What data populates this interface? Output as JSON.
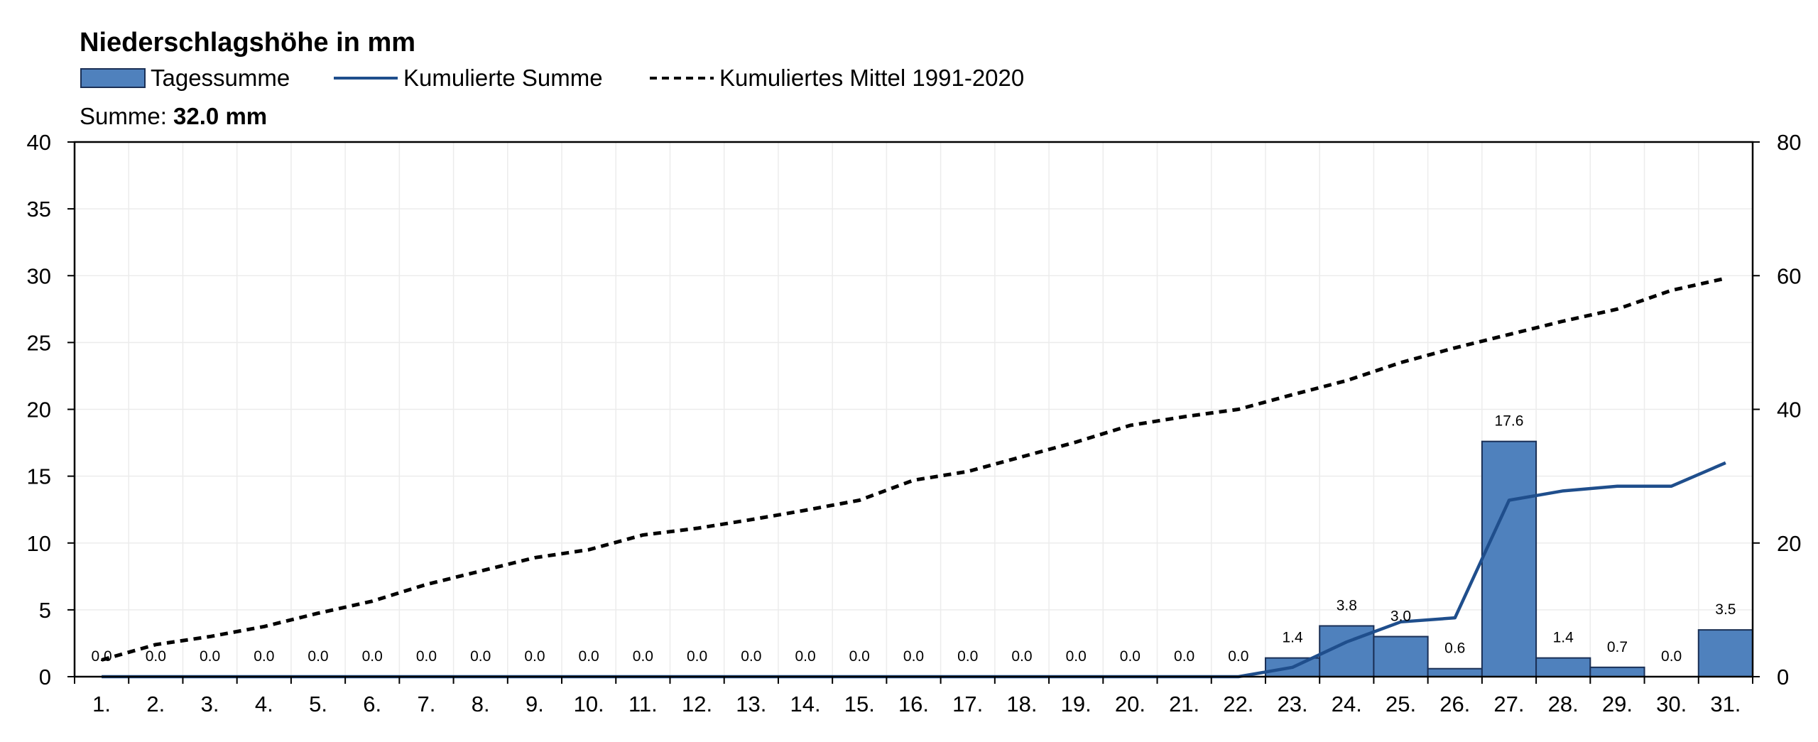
{
  "chart_data": {
    "type": "bar",
    "title": "Niederschlagshöhe in mm",
    "summary_label": "Summe: ",
    "summary_value": "32.0 mm",
    "categories": [
      "1.",
      "2.",
      "3.",
      "4.",
      "5.",
      "6.",
      "7.",
      "8.",
      "9.",
      "10.",
      "11.",
      "12.",
      "13.",
      "14.",
      "15.",
      "16.",
      "17.",
      "18.",
      "19.",
      "20.",
      "21.",
      "22.",
      "23.",
      "24.",
      "25.",
      "26.",
      "27.",
      "28.",
      "29.",
      "30.",
      "31."
    ],
    "series": [
      {
        "name": "Tagessumme",
        "type": "bar",
        "axis": "left",
        "color": "#4f81bd",
        "values": [
          0.0,
          0.0,
          0.0,
          0.0,
          0.0,
          0.0,
          0.0,
          0.0,
          0.0,
          0.0,
          0.0,
          0.0,
          0.0,
          0.0,
          0.0,
          0.0,
          0.0,
          0.0,
          0.0,
          0.0,
          0.0,
          0.0,
          1.4,
          3.8,
          3.0,
          0.6,
          17.6,
          1.4,
          0.7,
          0.0,
          3.5
        ],
        "labels": [
          "0.0",
          "0.0",
          "0.0",
          "0.0",
          "0.0",
          "0.0",
          "0.0",
          "0.0",
          "0.0",
          "0.0",
          "0.0",
          "0.0",
          "0.0",
          "0.0",
          "0.0",
          "0.0",
          "0.0",
          "0.0",
          "0.0",
          "0.0",
          "0.0",
          "0.0",
          "1.4",
          "3.8",
          "3.0",
          "0.6",
          "17.6",
          "1.4",
          "0.7",
          "0.0",
          "3.5"
        ]
      },
      {
        "name": "Kumulierte Summe",
        "type": "line",
        "axis": "right",
        "color": "#1f4e8c",
        "values": [
          0,
          0,
          0,
          0,
          0,
          0,
          0,
          0,
          0,
          0,
          0,
          0,
          0,
          0,
          0,
          0,
          0,
          0,
          0,
          0,
          0,
          0,
          1.4,
          5.2,
          8.2,
          8.8,
          26.4,
          27.8,
          28.5,
          28.5,
          32.0
        ]
      },
      {
        "name": "Kumuliertes Mittel 1991-2020",
        "type": "line",
        "axis": "right",
        "color": "#000000",
        "dashed": true,
        "values": [
          2.5,
          4.8,
          6.0,
          7.5,
          9.5,
          11.3,
          13.8,
          15.8,
          17.8,
          19.0,
          21.2,
          22.2,
          23.5,
          24.9,
          26.4,
          29.4,
          30.7,
          32.9,
          35.1,
          37.6,
          38.9,
          40.0,
          42.2,
          44.3,
          47.0,
          49.2,
          51.2,
          53.2,
          55.0,
          57.8,
          59.6
        ]
      }
    ],
    "ylim_left": [
      0,
      40
    ],
    "yticks_left": [
      0,
      5,
      10,
      15,
      20,
      25,
      30,
      35,
      40
    ],
    "ylim_right": [
      0,
      80
    ],
    "yticks_right": [
      0,
      20,
      40,
      60,
      80
    ],
    "grid": true,
    "legend_position": "top-left"
  }
}
